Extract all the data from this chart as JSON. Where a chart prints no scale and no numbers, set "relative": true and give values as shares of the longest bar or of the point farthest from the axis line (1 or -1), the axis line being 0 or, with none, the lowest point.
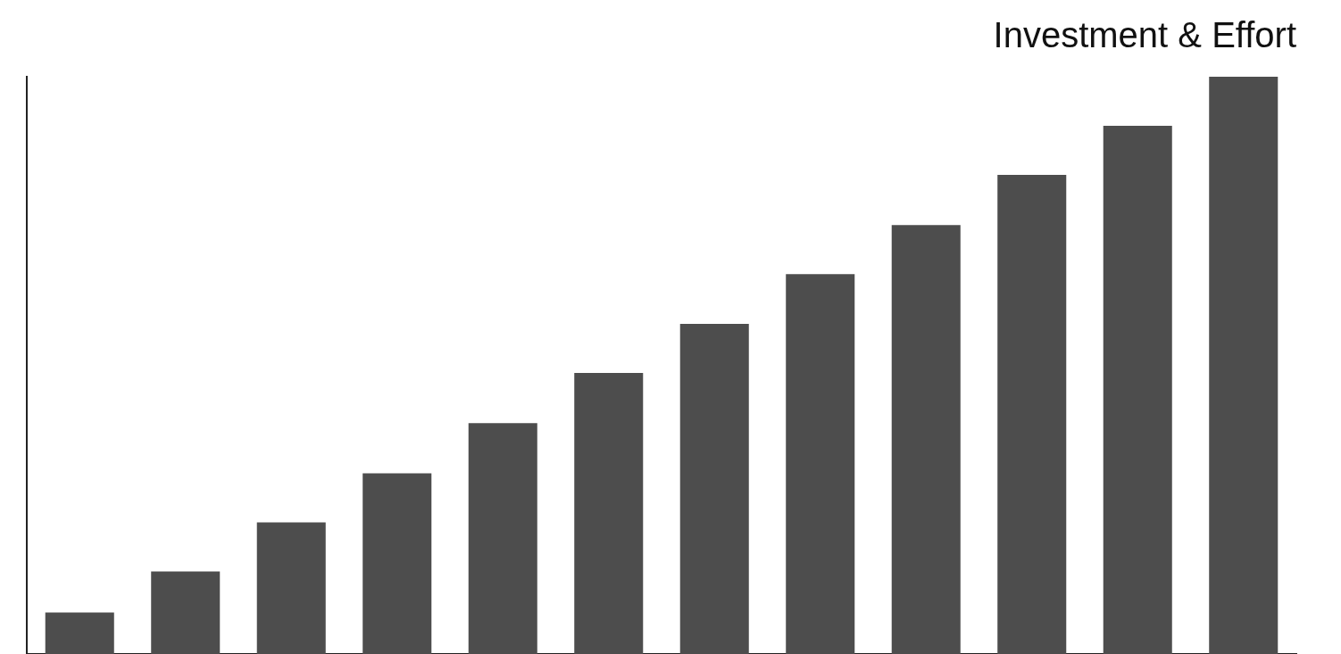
{
  "chart_data": {
    "type": "bar",
    "title": "Investment & Effort",
    "relative": true,
    "color": "#4d4d4d",
    "grid": false,
    "legend": false,
    "categories": [
      null,
      null,
      null,
      null,
      null,
      null,
      null,
      null,
      null,
      null,
      null,
      null
    ],
    "values": [
      0.072,
      0.143,
      0.228,
      0.313,
      0.4,
      0.487,
      0.572,
      0.658,
      0.743,
      0.83,
      0.915,
      1
    ]
  }
}
